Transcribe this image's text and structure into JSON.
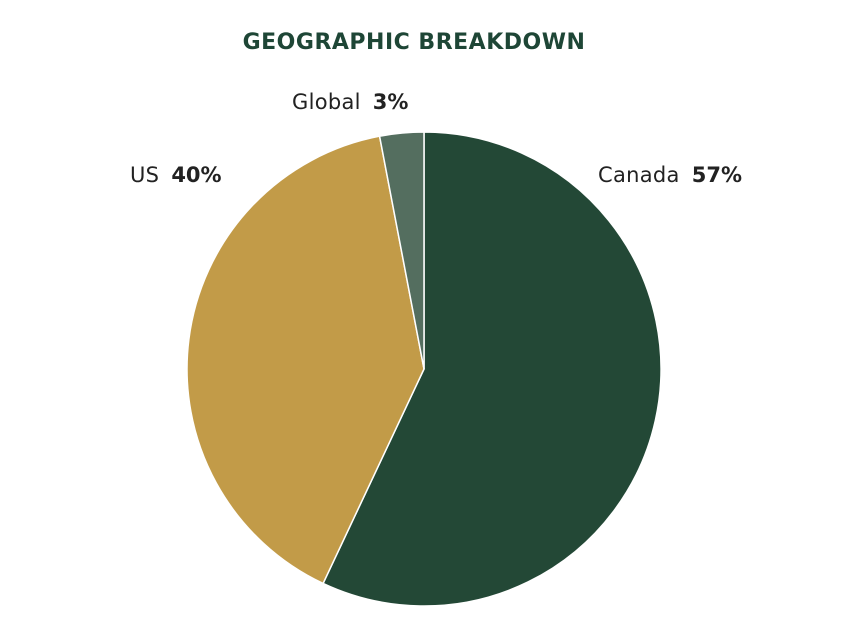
{
  "chart_data": {
    "type": "pie",
    "title": "GEOGRAPHIC BREAKDOWN",
    "categories": [
      "Canada",
      "US",
      "Global"
    ],
    "values": [
      57,
      40,
      3
    ],
    "value_suffix": "%",
    "colors": [
      "#234836",
      "#c29b48",
      "#546e5f"
    ],
    "title_color": "#1e4636",
    "start_angle_deg": 0,
    "direction": "clockwise",
    "legend": "none"
  }
}
